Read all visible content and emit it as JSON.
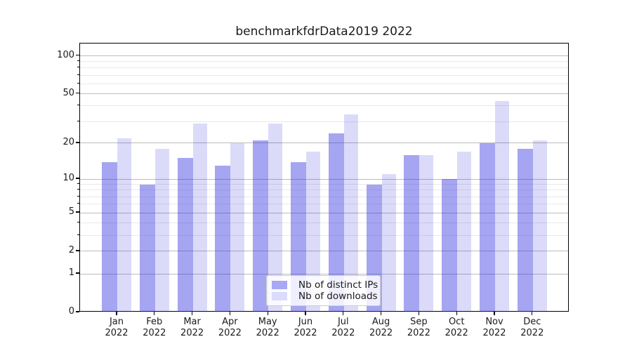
{
  "title": "benchmarkfdrData2019 2022",
  "colors": {
    "bar_ips": "rgba(30,30,220,0.40)",
    "bar_downloads": "rgba(30,30,220,0.16)",
    "legend_swatch_ips": "#a8a8f3",
    "legend_swatch_downloads": "#dbdbfa",
    "grid_major": "#bcbcbc",
    "grid_minor": "#e9e9e9",
    "spine": "#000000",
    "text": "#1a1a1a"
  },
  "axes": {
    "y_tick_labels": [
      "100",
      "50",
      "20",
      "10",
      "5",
      "2",
      "1",
      "0"
    ],
    "y_ticks": [
      100,
      50,
      20,
      10,
      5,
      2,
      1,
      0
    ],
    "y_minor_ticks": [
      90,
      80,
      70,
      60,
      40,
      30,
      9,
      8,
      7,
      6,
      4,
      3
    ],
    "x_sublabel": "2022"
  },
  "legend": {
    "items": [
      {
        "label": "Nb of distinct IPs"
      },
      {
        "label": "Nb of downloads"
      }
    ]
  },
  "chart_data": {
    "type": "bar",
    "title": "benchmarkfdrData2019 2022",
    "categories": [
      "Jan",
      "Feb",
      "Mar",
      "Apr",
      "May",
      "Jun",
      "Jul",
      "Aug",
      "Sep",
      "Oct",
      "Nov",
      "Dec"
    ],
    "x_sublabel": "2022",
    "series": [
      {
        "name": "Nb of distinct IPs",
        "values": [
          14,
          9,
          15,
          13,
          21,
          14,
          24,
          9,
          16,
          10,
          20,
          18
        ]
      },
      {
        "name": "Nb of downloads",
        "values": [
          22,
          18,
          29,
          20,
          29,
          17,
          34,
          11,
          16,
          17,
          44,
          21
        ]
      }
    ],
    "yscale": "log1p",
    "ylim": [
      0,
      125
    ],
    "xlabel": "",
    "ylabel": "",
    "grid": true,
    "legend_position": "lower center"
  }
}
